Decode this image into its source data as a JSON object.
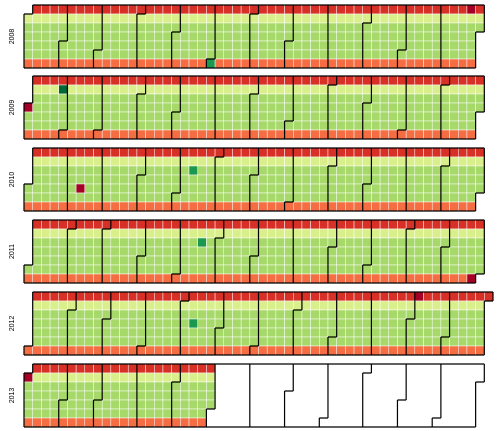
{
  "chart_data": {
    "type": "heatmap",
    "subtype": "calendar",
    "title": "",
    "xlabel": "",
    "ylabel": "",
    "layout": "weeks-by-weekday",
    "week_start": "Monday",
    "years": [
      "2008",
      "2009",
      "2010",
      "2011",
      "2012",
      "2013"
    ],
    "date_range": [
      "2008-01-01",
      "2013-05-31"
    ],
    "empty_cell_color": "#ffffff",
    "color_scale": [
      "#a50026",
      "#d73027",
      "#f46d43",
      "#fdae61",
      "#fee08b",
      "#ffffbf",
      "#d9ef8b",
      "#a6d96a",
      "#66bd63",
      "#1a9850",
      "#006837"
    ],
    "color_scale_low_to_high": [
      "#a50026",
      "#d73027",
      "#f46d43",
      "#fdae61",
      "#fee08b",
      "#ffffbf",
      "#d9ef8b",
      "#a6d96a",
      "#66bd63",
      "#1a9850",
      "#006837"
    ],
    "grid": false,
    "legend": "none",
    "daily_values_by_weekday": [
      {
        "weekday": "Monday",
        "level": 1
      },
      {
        "weekday": "Tuesday",
        "level": 6
      },
      {
        "weekday": "Wednesday",
        "level": 7
      },
      {
        "weekday": "Thursday",
        "level": 7
      },
      {
        "weekday": "Friday",
        "level": 7
      },
      {
        "weekday": "Saturday",
        "level": 7
      },
      {
        "weekday": "Sunday",
        "level": 2
      }
    ],
    "highlight_days": [
      {
        "date": "2008-06-01",
        "level": 9
      },
      {
        "date": "2009-01-27",
        "level": 10
      },
      {
        "date": "2010-05-12",
        "level": 9
      },
      {
        "date": "2011-05-18",
        "level": 9
      },
      {
        "date": "2012-05-10",
        "level": 9
      }
    ],
    "low_days": [
      {
        "date": "2008-12-22",
        "level": 0
      },
      {
        "date": "2009-01-01",
        "level": 0
      },
      {
        "date": "2010-02-12",
        "level": 0
      },
      {
        "date": "2011-12-25",
        "level": 0
      },
      {
        "date": "2012-11-05",
        "level": 0
      },
      {
        "date": "2013-01-01",
        "level": 0
      }
    ]
  }
}
